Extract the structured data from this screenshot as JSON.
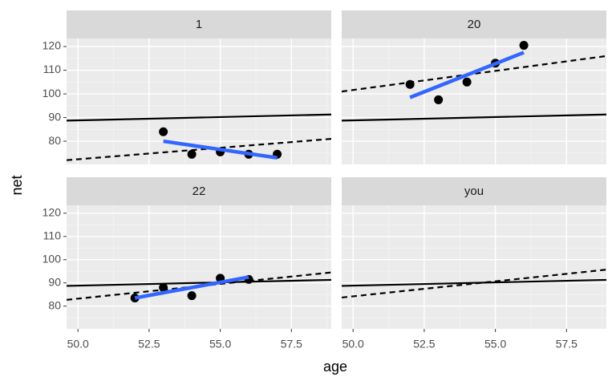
{
  "xlabel": "age",
  "ylabel": "net",
  "chart_data": [
    {
      "type": "scatter",
      "title": "1",
      "x": [
        53,
        54,
        55,
        56,
        57
      ],
      "values": [
        84,
        74.5,
        75.5,
        74.5,
        74.5
      ],
      "color": "#000000",
      "fit": {
        "x": [
          53,
          57
        ],
        "values": [
          80,
          73
        ],
        "color": "#3366ff"
      },
      "lines": [
        {
          "x": [
            49.6,
            58.9
          ],
          "values": [
            88.7,
            91.3
          ],
          "dashed": false,
          "color": "#000000"
        },
        {
          "x": [
            49.6,
            58.9
          ],
          "values": [
            72,
            81
          ],
          "dashed": true,
          "color": "#000000"
        }
      ],
      "xlim": [
        49.6,
        58.9
      ],
      "ylim": [
        70.2,
        123.4
      ],
      "xticks": [
        50,
        52.5,
        55,
        57.5
      ],
      "yticks": [
        80,
        90,
        100,
        110,
        120
      ],
      "grid": true
    },
    {
      "type": "scatter",
      "title": "20",
      "x": [
        52,
        53,
        54,
        55,
        56
      ],
      "values": [
        104,
        97.5,
        105,
        113,
        120.5
      ],
      "color": "#000000",
      "fit": {
        "x": [
          52,
          56
        ],
        "values": [
          98.5,
          117.5
        ],
        "color": "#3366ff"
      },
      "lines": [
        {
          "x": [
            49.6,
            58.9
          ],
          "values": [
            88.7,
            91.3
          ],
          "dashed": false,
          "color": "#000000"
        },
        {
          "x": [
            49.6,
            58.9
          ],
          "values": [
            101,
            116
          ],
          "dashed": true,
          "color": "#000000"
        }
      ],
      "xlim": [
        49.6,
        58.9
      ],
      "ylim": [
        70.2,
        123.4
      ],
      "xticks": [
        50,
        52.5,
        55,
        57.5
      ],
      "yticks": [
        80,
        90,
        100,
        110,
        120
      ],
      "grid": true
    },
    {
      "type": "scatter",
      "title": "22",
      "x": [
        52,
        53,
        54,
        55,
        56
      ],
      "values": [
        83.5,
        88,
        84.5,
        92,
        91.5
      ],
      "color": "#000000",
      "fit": {
        "x": [
          52,
          56
        ],
        "values": [
          83.5,
          92.5
        ],
        "color": "#3366ff"
      },
      "lines": [
        {
          "x": [
            49.6,
            58.9
          ],
          "values": [
            88.7,
            91.3
          ],
          "dashed": false,
          "color": "#000000"
        },
        {
          "x": [
            49.6,
            58.9
          ],
          "values": [
            82.7,
            94.5
          ],
          "dashed": true,
          "color": "#000000"
        }
      ],
      "xlim": [
        49.6,
        58.9
      ],
      "ylim": [
        70.2,
        123.4
      ],
      "xticks": [
        {
          "value": 50,
          "label": "50.0"
        },
        {
          "value": 52.5,
          "label": "52.5"
        },
        {
          "value": 55,
          "label": "55.0"
        },
        {
          "value": 57.5,
          "label": "57.5"
        }
      ],
      "yticks": [
        80,
        90,
        100,
        110,
        120
      ],
      "grid": true
    },
    {
      "type": "scatter",
      "title": "you",
      "x": [],
      "values": [],
      "color": "#000000",
      "lines": [
        {
          "x": [
            49.6,
            58.9
          ],
          "values": [
            88.7,
            91.3
          ],
          "dashed": false,
          "color": "#000000"
        },
        {
          "x": [
            49.6,
            58.9
          ],
          "values": [
            83.7,
            95.7
          ],
          "dashed": true,
          "color": "#000000"
        }
      ],
      "xlim": [
        49.6,
        58.9
      ],
      "ylim": [
        70.2,
        123.4
      ],
      "xticks": [
        {
          "value": 50,
          "label": "50.0"
        },
        {
          "value": 52.5,
          "label": "52.5"
        },
        {
          "value": 55,
          "label": "55.0"
        },
        {
          "value": 57.5,
          "label": "57.5"
        }
      ],
      "yticks": [
        80,
        90,
        100,
        110,
        120
      ],
      "grid": true
    }
  ]
}
